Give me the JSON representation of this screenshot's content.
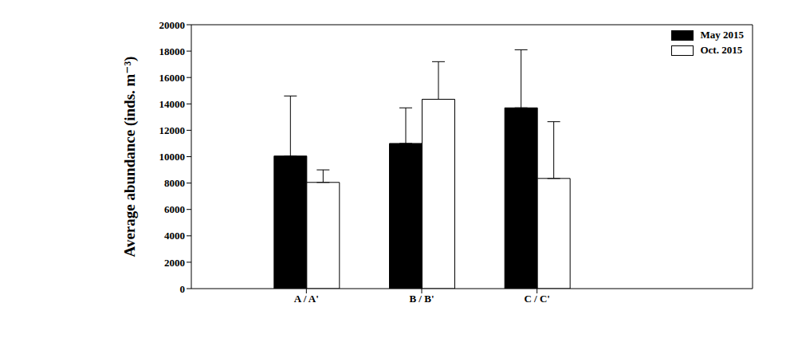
{
  "chart_data": {
    "type": "bar",
    "y_label": "Average abundance (inds. m⁻³)",
    "categories": [
      "A / A'",
      "B / B'",
      "C / C'"
    ],
    "series": [
      {
        "name": "May 2015",
        "color": "#000000",
        "values": [
          10050,
          11000,
          13700
        ],
        "errors": [
          4550,
          2700,
          4400
        ]
      },
      {
        "name": "Oct. 2015",
        "color": "#ffffff",
        "values": [
          8050,
          14350,
          8350
        ],
        "errors": [
          950,
          2850,
          4300
        ]
      }
    ],
    "ylim": [
      0,
      20000
    ],
    "yticks": [
      0,
      2000,
      4000,
      6000,
      8000,
      10000,
      12000,
      14000,
      16000,
      18000,
      20000
    ],
    "grid": false,
    "legend": "upper right"
  }
}
